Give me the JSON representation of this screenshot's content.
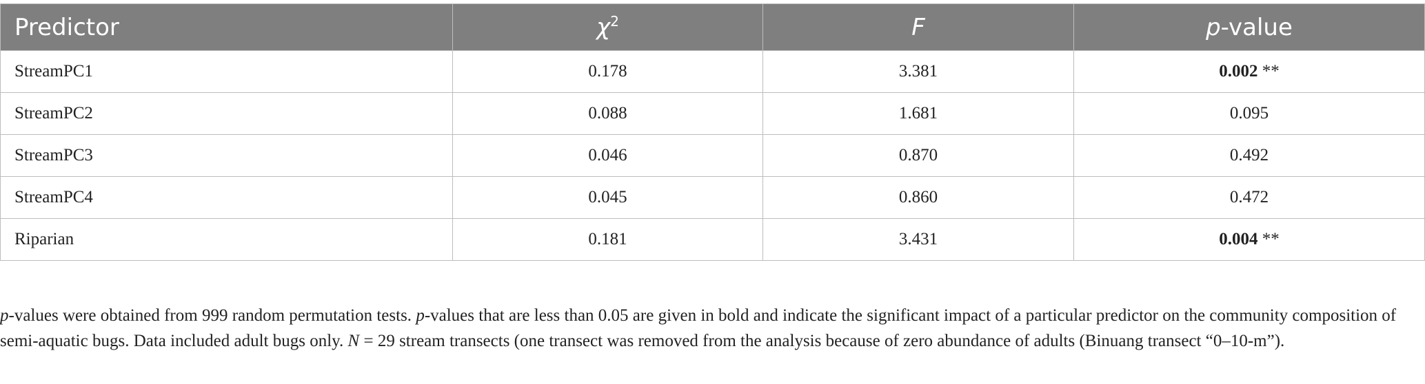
{
  "table": {
    "header": [
      [
        "Predictor"
      ],
      [
        "χ",
        "2"
      ],
      [
        "F"
      ],
      [
        "p",
        "-value"
      ]
    ],
    "rows": [
      [
        "StreamPC1",
        "0.178",
        "3.381",
        "0.002",
        "**"
      ],
      [
        "StreamPC2",
        "0.088",
        "1.681",
        "0.095"
      ],
      [
        "StreamPC3",
        "0.046",
        "0.870",
        "0.492"
      ],
      [
        "StreamPC4",
        "0.045",
        "0.860",
        "0.472"
      ],
      [
        "Riparian",
        "0.181",
        "3.431",
        "0.004",
        "**"
      ]
    ]
  },
  "footnote": [
    "p",
    "-values were obtained from 999 random permutation tests. ",
    "p",
    "-values that are less than 0.05 are given in bold and indicate the significant impact of a particular predictor on the community composition of semi-aquatic bugs. Data included adult bugs only. ",
    "N",
    " = 29 stream transects (one transect was removed from the analysis because of zero abundance of adults (Binuang transect “0–10-m”)."
  ]
}
